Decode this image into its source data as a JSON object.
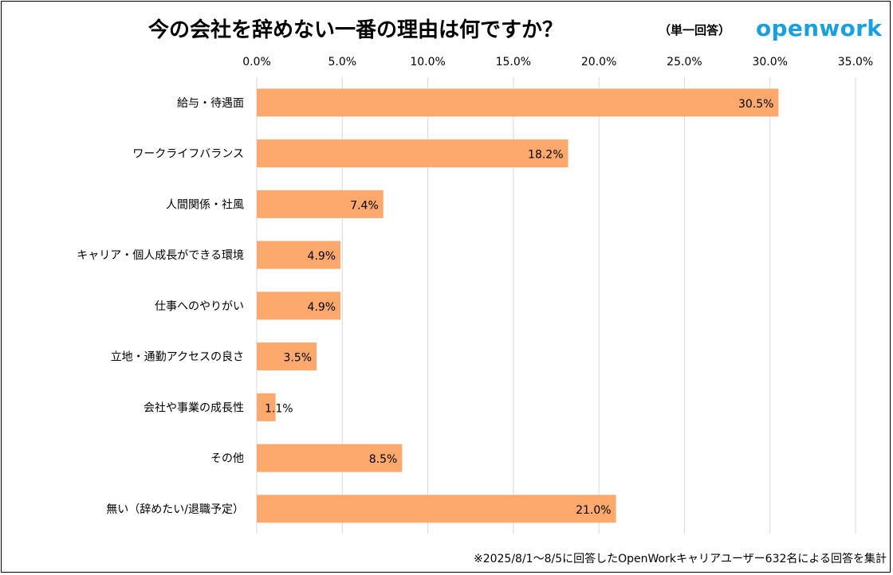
{
  "header": {
    "title": "今の会社を辞めない一番の理由は何ですか？",
    "subtitle": "（単一回答）",
    "brand": "openwork"
  },
  "footnote": "※2025/8/1～8/5に回答したOpenWorkキャリアユーザー632名による回答を集計",
  "colors": {
    "bar": "#fda86c",
    "axis": "#d9d9d9",
    "text": "#000000",
    "brand": "#1aa0dc"
  },
  "chart_data": {
    "type": "bar",
    "orientation": "horizontal",
    "title": "今の会社を辞めない一番の理由は何ですか？",
    "subtitle": "（単一回答）",
    "categories": [
      "給与・待遇面",
      "ワークライフバランス",
      "人間関係・社風",
      "キャリア・個人成長ができる環境",
      "仕事へのやりがい",
      "立地・通勤アクセスの良さ",
      "会社や事業の成長性",
      "その他",
      "無い（辞めたい/退職予定）"
    ],
    "values": [
      30.5,
      18.2,
      7.4,
      4.9,
      4.9,
      3.5,
      1.1,
      8.5,
      21.0
    ],
    "value_labels": [
      "30.5%",
      "18.2%",
      "7.4%",
      "4.9%",
      "4.9%",
      "3.5%",
      "1.1%",
      "8.5%",
      "21.0%"
    ],
    "xlim": [
      0,
      35
    ],
    "xticks": [
      0,
      5,
      10,
      15,
      20,
      25,
      30,
      35
    ],
    "xtick_labels": [
      "0.0%",
      "5.0%",
      "10.0%",
      "15.0%",
      "20.0%",
      "25.0%",
      "30.0%",
      "35.0%"
    ],
    "x_axis_position": "top",
    "grid": true,
    "legend": "none"
  }
}
